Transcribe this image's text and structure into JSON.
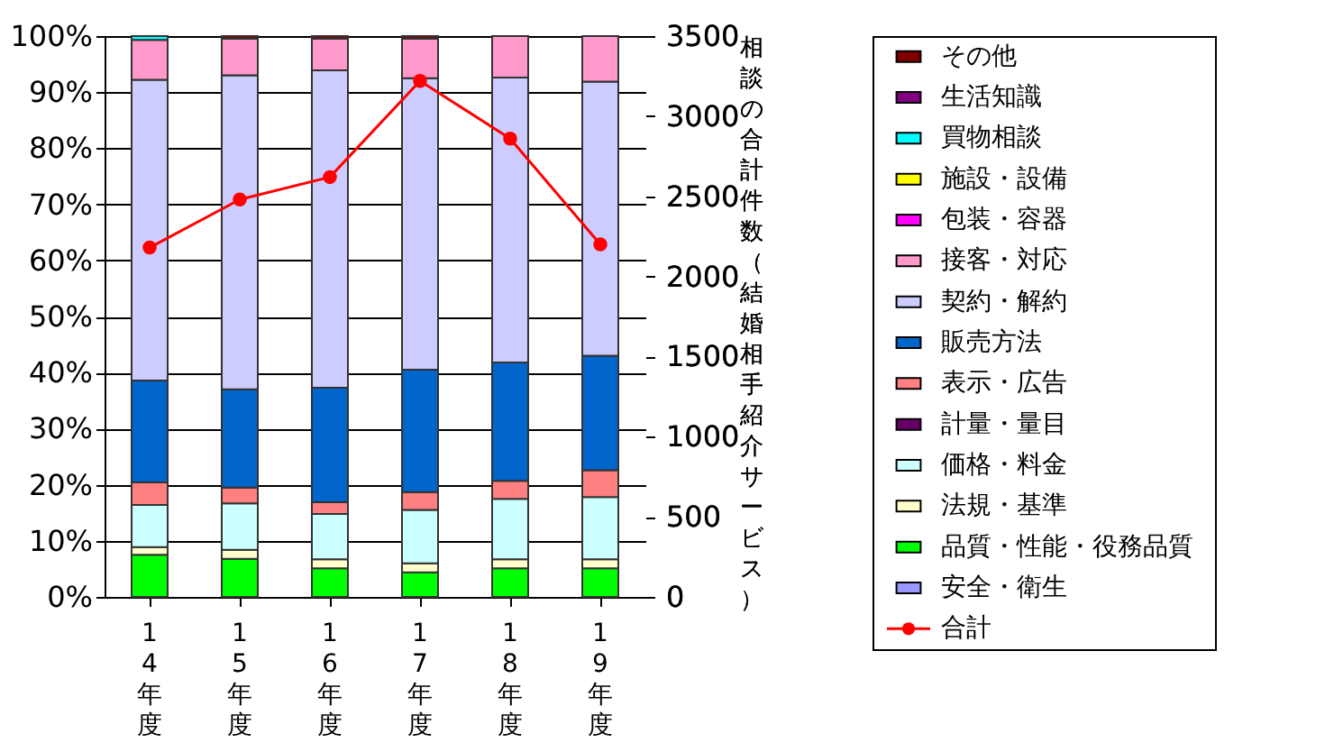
{
  "chart_data": {
    "type": "bar",
    "stacked": true,
    "categories": [
      "14年度",
      "15年度",
      "16年度",
      "17年度",
      "18年度",
      "19年度"
    ],
    "y2label": "相談の合計件数（結婚相手紹介サービス）",
    "ylim": [
      0,
      100
    ],
    "yticks": [
      {
        "value": 0,
        "label": "0%"
      },
      {
        "value": 10,
        "label": "10%"
      },
      {
        "value": 20,
        "label": "20%"
      },
      {
        "value": 30,
        "label": "30%"
      },
      {
        "value": 40,
        "label": "40%"
      },
      {
        "value": 50,
        "label": "50%"
      },
      {
        "value": 60,
        "label": "60%"
      },
      {
        "value": 70,
        "label": "70%"
      },
      {
        "value": 80,
        "label": "80%"
      },
      {
        "value": 90,
        "label": "90%"
      },
      {
        "value": 100,
        "label": "100%"
      }
    ],
    "y2lim": [
      0,
      3500
    ],
    "y2ticks": [
      0,
      500,
      1000,
      1500,
      2000,
      2500,
      3000,
      3500
    ],
    "grid": "y",
    "legend": "right",
    "marker": "circle",
    "line_style": "solid",
    "series": [
      {
        "name": "安全・衛生",
        "color": "#9999ff",
        "values": [
          0,
          0,
          0,
          0,
          0,
          0
        ]
      },
      {
        "name": "品質・性能・役務品質",
        "color": "#00ff00",
        "values": [
          7.5,
          6.8,
          5.1,
          4.4,
          5.1,
          5.1
        ]
      },
      {
        "name": "法規・基準",
        "color": "#ffffcc",
        "values": [
          1.4,
          1.6,
          1.6,
          1.6,
          1.6,
          1.6
        ]
      },
      {
        "name": "価格・料金",
        "color": "#ccffff",
        "values": [
          7.5,
          8.3,
          8.1,
          9.5,
          10.8,
          11.1
        ]
      },
      {
        "name": "計量・量目",
        "color": "#660066",
        "values": [
          0,
          0,
          0,
          0,
          0,
          0
        ]
      },
      {
        "name": "表示・広告",
        "color": "#ff8080",
        "values": [
          4.0,
          2.8,
          2.1,
          3.2,
          3.2,
          4.8
        ]
      },
      {
        "name": "販売方法",
        "color": "#0066cc",
        "values": [
          18.2,
          17.5,
          20.4,
          21.8,
          21.1,
          20.4
        ]
      },
      {
        "name": "契約・解約",
        "color": "#ccccff",
        "values": [
          53.6,
          56.0,
          56.6,
          52.0,
          50.8,
          48.9
        ]
      },
      {
        "name": "接客・対応",
        "color": "#ff99cc",
        "values": [
          7.1,
          6.5,
          5.6,
          7.0,
          7.4,
          8.1
        ]
      },
      {
        "name": "包装・容器",
        "color": "#ff00ff",
        "values": [
          0,
          0,
          0,
          0,
          0,
          0
        ]
      },
      {
        "name": "施設・設備",
        "color": "#ffff00",
        "values": [
          0,
          0,
          0,
          0,
          0,
          0
        ]
      },
      {
        "name": "買物相談",
        "color": "#00ffff",
        "values": [
          0.7,
          0,
          0,
          0,
          0,
          0
        ]
      },
      {
        "name": "生活知識",
        "color": "#800080",
        "values": [
          0,
          0,
          0,
          0,
          0,
          0
        ]
      },
      {
        "name": "その他",
        "color": "#800000",
        "values": [
          0,
          0.5,
          0.5,
          0.5,
          0,
          0
        ]
      },
      {
        "name": "合計",
        "type": "line",
        "axis": "y2",
        "color": "#ff0000",
        "values": [
          2180,
          2480,
          2620,
          3220,
          2860,
          2200
        ]
      }
    ]
  }
}
